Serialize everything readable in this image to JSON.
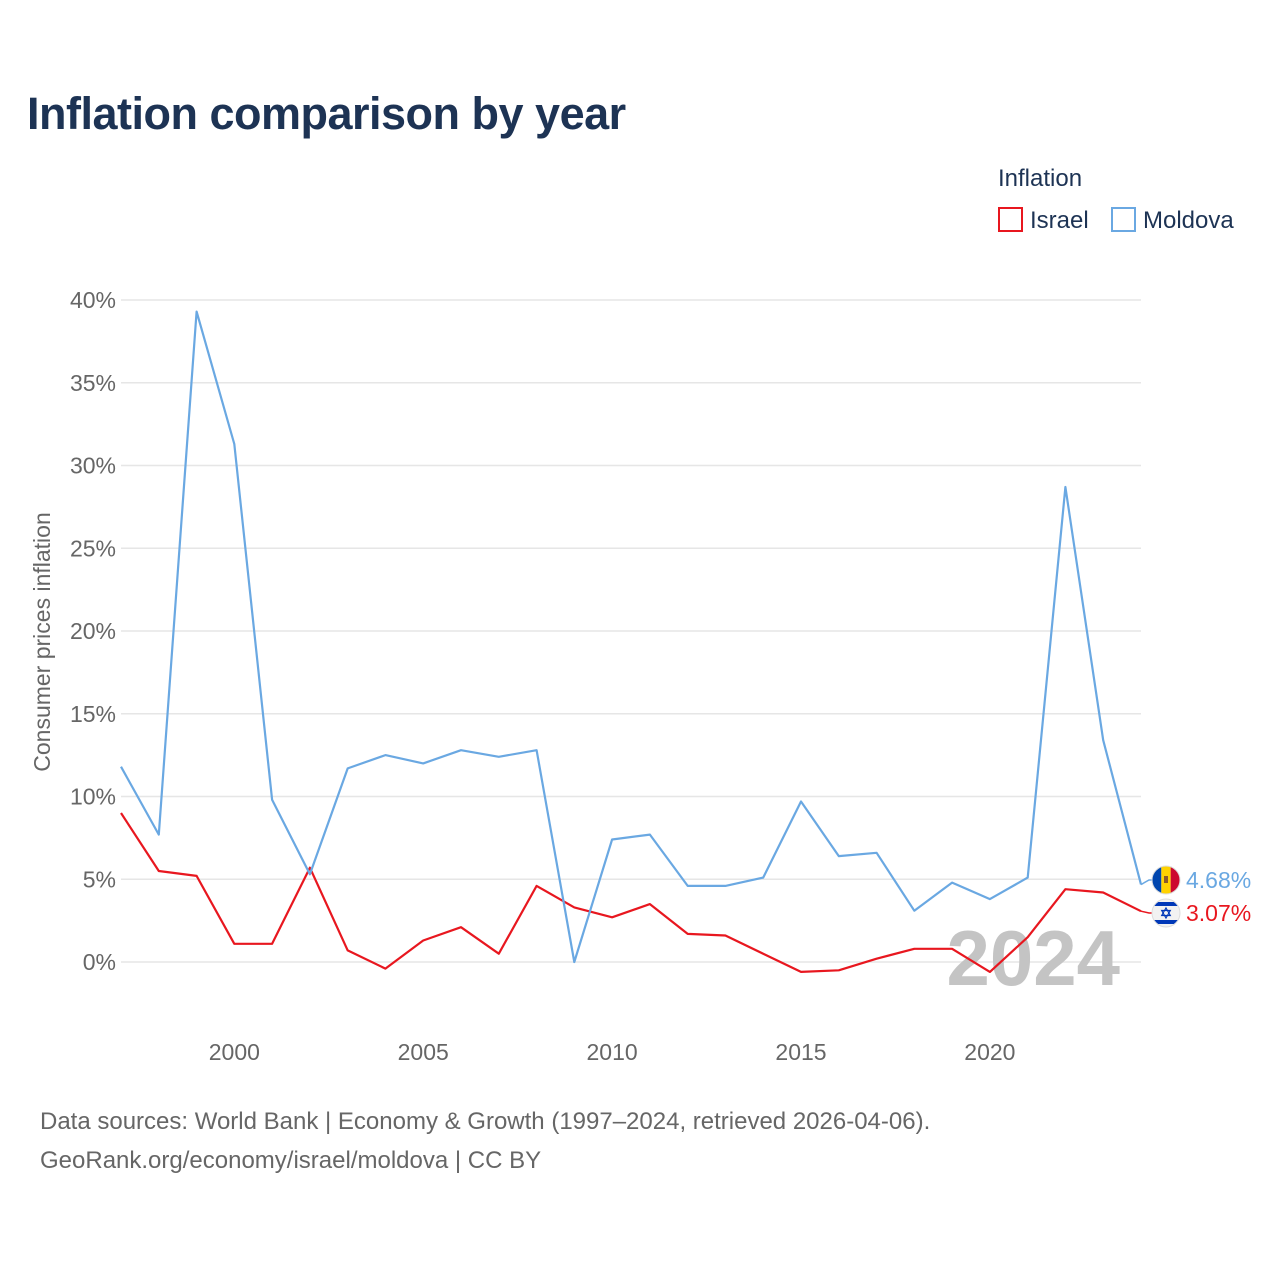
{
  "chart_data": {
    "type": "line",
    "title": "Inflation comparison by year",
    "legend_title": "Inflation",
    "legend_position": "top-right",
    "ylabel": "Consumer prices inflation",
    "xlabel": "",
    "ylim": [
      -3,
      40
    ],
    "xlim": [
      1997,
      2024
    ],
    "y_ticks": [
      0,
      5,
      10,
      15,
      20,
      25,
      30,
      35,
      40
    ],
    "y_tick_labels": [
      "0%",
      "5%",
      "10%",
      "15%",
      "20%",
      "25%",
      "30%",
      "35%",
      "40%"
    ],
    "x_ticks": [
      2000,
      2005,
      2010,
      2015,
      2020
    ],
    "x_tick_labels": [
      "2000",
      "2005",
      "2010",
      "2015",
      "2020"
    ],
    "grid": true,
    "year_watermark": "2024",
    "x": [
      1997,
      1998,
      1999,
      2000,
      2001,
      2002,
      2003,
      2004,
      2005,
      2006,
      2007,
      2008,
      2009,
      2010,
      2011,
      2012,
      2013,
      2014,
      2015,
      2016,
      2017,
      2018,
      2019,
      2020,
      2021,
      2022,
      2023,
      2024
    ],
    "series": [
      {
        "name": "Israel",
        "color": "#e8171f",
        "flag_icon": "israel-flag-icon",
        "end_label": "3.07%",
        "values": [
          9.0,
          5.5,
          5.2,
          1.1,
          1.1,
          5.7,
          0.7,
          -0.4,
          1.3,
          2.1,
          0.5,
          4.6,
          3.3,
          2.7,
          3.5,
          1.7,
          1.6,
          0.5,
          -0.6,
          -0.5,
          0.2,
          0.8,
          0.8,
          -0.6,
          1.5,
          4.4,
          4.2,
          3.07
        ]
      },
      {
        "name": "Moldova",
        "color": "#6aa8e2",
        "flag_icon": "moldova-flag-icon",
        "end_label": "4.68%",
        "values": [
          11.8,
          7.7,
          39.3,
          31.3,
          9.8,
          5.3,
          11.7,
          12.5,
          12.0,
          12.8,
          12.4,
          12.8,
          0.0,
          7.4,
          7.7,
          4.6,
          4.6,
          5.1,
          9.7,
          6.4,
          6.6,
          3.1,
          4.8,
          3.8,
          5.1,
          28.7,
          13.4,
          4.68
        ]
      }
    ]
  },
  "footer": {
    "line1": "Data sources: World Bank | Economy & Growth (1997–2024, retrieved 2026-04-06).",
    "line2": "GeoRank.org/economy/israel/moldova | CC BY"
  }
}
